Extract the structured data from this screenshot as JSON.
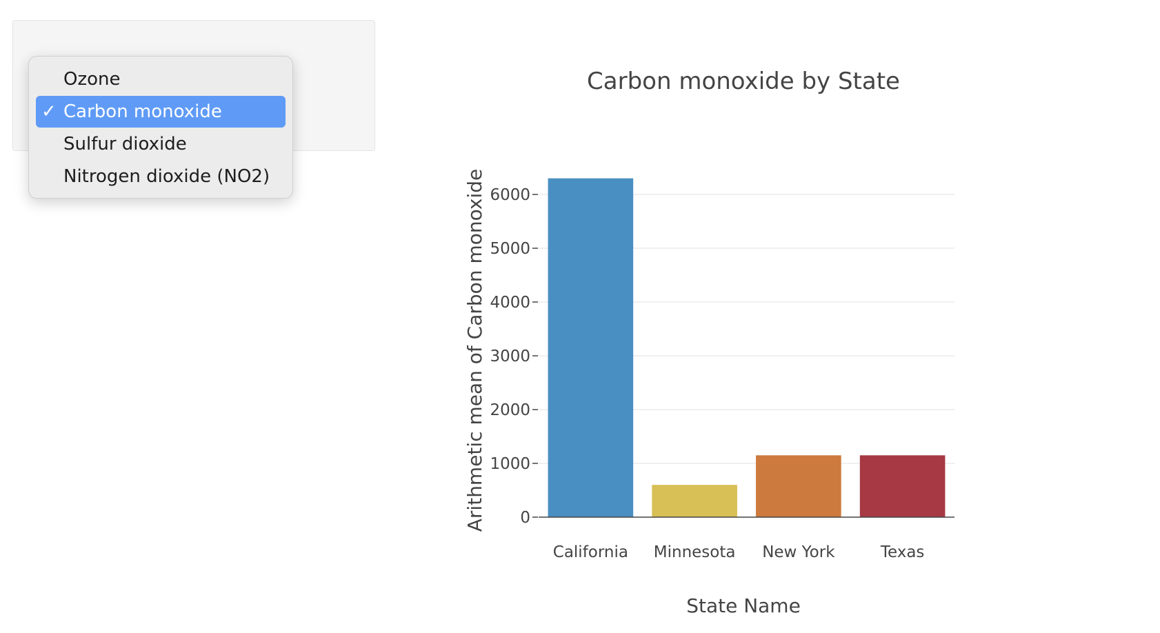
{
  "dropdown": {
    "items": [
      {
        "label": "Ozone",
        "selected": false
      },
      {
        "label": "Carbon monoxide",
        "selected": true
      },
      {
        "label": "Sulfur dioxide",
        "selected": false
      },
      {
        "label": "Nitrogen dioxide (NO2)",
        "selected": false
      }
    ],
    "check_mark": "✓",
    "selected_color": "#5f9bf6"
  },
  "chart_data": {
    "type": "bar",
    "title": "Carbon monoxide by State",
    "xlabel": "State Name",
    "ylabel": "Arithmetic mean of Carbon monoxide",
    "categories": [
      "California",
      "Minnesota",
      "New York",
      "Texas"
    ],
    "values": [
      6300,
      600,
      1150,
      1150
    ],
    "colors": [
      "#4a8fc1",
      "#d8bf56",
      "#cc7a3e",
      "#a73945"
    ],
    "yticks": [
      0,
      1000,
      2000,
      3000,
      4000,
      5000,
      6000
    ],
    "ylim": [
      0,
      6300
    ],
    "grid": true,
    "legend": "none"
  }
}
